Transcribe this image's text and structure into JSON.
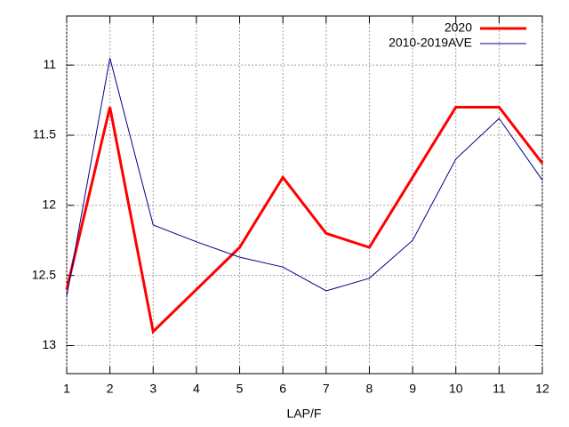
{
  "chart_data": {
    "type": "line",
    "xlabel": "LAP/F",
    "x": [
      1,
      2,
      3,
      4,
      5,
      6,
      7,
      8,
      9,
      10,
      11,
      12
    ],
    "series": [
      {
        "name": "2020",
        "color": "#ff0000",
        "values": [
          12.6,
          11.3,
          12.9,
          12.6,
          12.3,
          11.8,
          12.2,
          12.3,
          11.8,
          11.3,
          11.3,
          11.7
        ]
      },
      {
        "name": "2010-2019AVE",
        "color": "#00008b",
        "values": [
          12.65,
          10.95,
          12.14,
          12.26,
          12.37,
          12.44,
          12.61,
          12.52,
          12.25,
          11.67,
          11.38,
          11.82
        ]
      }
    ],
    "xlim": [
      1,
      12
    ],
    "xticks": [
      1,
      2,
      3,
      4,
      5,
      6,
      7,
      8,
      9,
      10,
      11,
      12
    ],
    "ylim": [
      13.2,
      10.65
    ],
    "yticks": [
      11,
      {
        "value": 11.5,
        "label": "11.5"
      },
      12,
      {
        "value": 12.5,
        "label": "12.5"
      },
      13
    ],
    "grid": true,
    "legend": "top-right"
  }
}
